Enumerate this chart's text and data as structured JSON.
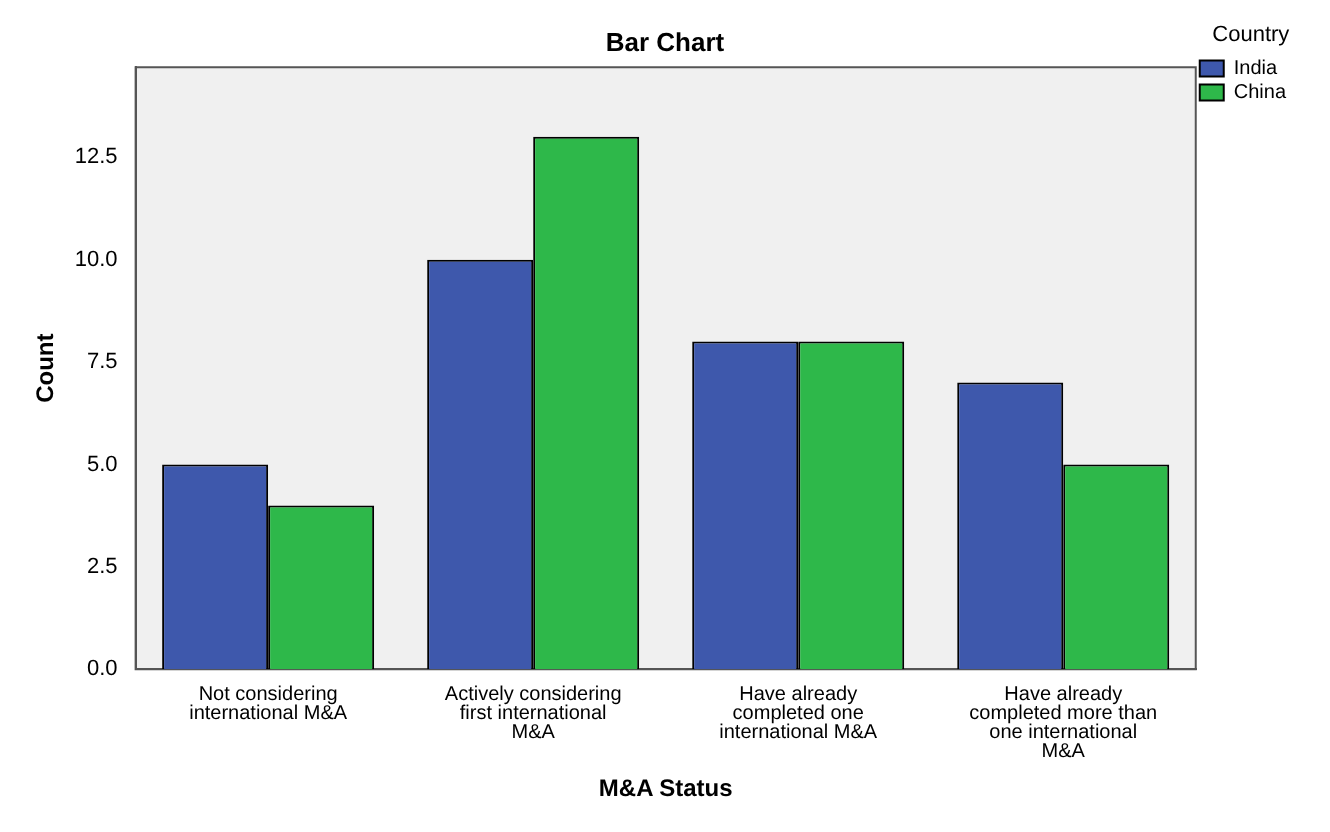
{
  "chart_data": {
    "type": "bar",
    "title": "Bar Chart",
    "xlabel": "M&A Status",
    "ylabel": "Count",
    "legend_title": "Country",
    "legend": "top right",
    "categories": [
      "Not considering international M&A",
      "Actively considering first international M&A",
      "Have already completed one international M&A",
      "Have already completed more than one international M&A"
    ],
    "series": [
      {
        "name": "India",
        "color": "#3e58ac",
        "values": [
          5,
          10,
          8,
          7
        ]
      },
      {
        "name": "China",
        "color": "#2eb84a",
        "values": [
          4,
          13,
          8,
          5
        ]
      }
    ],
    "ylim": [
      0,
      14.7
    ],
    "yticks": [
      {
        "value": 0,
        "label": "0.0"
      },
      {
        "value": 2.5,
        "label": "2.5"
      },
      {
        "value": 5,
        "label": "5.0"
      },
      {
        "value": 7.5,
        "label": "7.5"
      },
      {
        "value": 10,
        "label": "10.0"
      },
      {
        "value": 12.5,
        "label": "12.5"
      }
    ],
    "grid": false
  }
}
